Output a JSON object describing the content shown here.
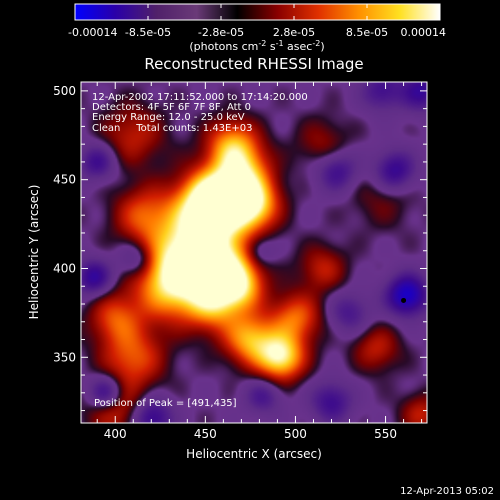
{
  "chart_data": {
    "type": "heatmap",
    "title": "Reconstructed RHESSI Image",
    "xlabel": "Heliocentric X (arcsec)",
    "ylabel": "Heliocentric Y (arcsec)",
    "xlim": [
      381,
      573
    ],
    "ylim": [
      313,
      505
    ],
    "x_ticks": [
      "400",
      "450",
      "500",
      "550"
    ],
    "y_ticks": [
      "350",
      "400",
      "450",
      "500"
    ],
    "colorbar": {
      "ticks": [
        "-0.00014",
        "-8.5e-05",
        "-2.8e-05",
        "2.8e-05",
        "8.5e-05",
        "0.00014"
      ],
      "unit_label_parts": {
        "pre": "(photons cm",
        "e1": "-2",
        "mid": " s",
        "e2": "-1",
        "post": " asec",
        "e3": "-2",
        "end": ")"
      },
      "range": [
        -0.00014,
        0.00014
      ],
      "colors": [
        "#0000ff",
        "#2a00a8",
        "#50206a",
        "#6a3a78",
        "#000000",
        "#8a0000",
        "#e03000",
        "#ff9000",
        "#ffe020",
        "#ffffff"
      ]
    },
    "annotations": [
      "12-Apr-2002 17:11:52.000 to 17:14:20.000",
      "Detectors: 4F 5F 6F 7F 8F, Att 0",
      "Energy Range: 12.0 - 25.0 keV",
      "Clean     Total counts: 1.43E+03"
    ],
    "peak_label": "Position of Peak = [491,435]",
    "peak": [
      491,
      435
    ],
    "marker": [
      560,
      382
    ],
    "sources": [
      {
        "x": 455,
        "y": 438,
        "v": 1.0,
        "s": 11
      },
      {
        "x": 476,
        "y": 436,
        "v": 0.85,
        "s": 10
      },
      {
        "x": 450,
        "y": 428,
        "v": 0.7,
        "s": 16
      },
      {
        "x": 470,
        "y": 454,
        "v": 0.7,
        "s": 11
      },
      {
        "x": 465,
        "y": 470,
        "v": 0.6,
        "s": 10
      },
      {
        "x": 440,
        "y": 405,
        "v": 0.75,
        "s": 15
      },
      {
        "x": 460,
        "y": 400,
        "v": 0.72,
        "s": 12
      },
      {
        "x": 430,
        "y": 390,
        "v": 0.65,
        "s": 14
      },
      {
        "x": 455,
        "y": 380,
        "v": 0.6,
        "s": 11
      },
      {
        "x": 470,
        "y": 390,
        "v": 0.55,
        "s": 9
      },
      {
        "x": 475,
        "y": 360,
        "v": 0.7,
        "s": 10
      },
      {
        "x": 492,
        "y": 350,
        "v": 0.9,
        "s": 9
      },
      {
        "x": 500,
        "y": 372,
        "v": 0.55,
        "s": 10
      },
      {
        "x": 410,
        "y": 350,
        "v": 0.5,
        "s": 12
      },
      {
        "x": 400,
        "y": 372,
        "v": 0.45,
        "s": 10
      },
      {
        "x": 415,
        "y": 430,
        "v": 0.45,
        "s": 11
      },
      {
        "x": 410,
        "y": 475,
        "v": 0.35,
        "s": 12
      },
      {
        "x": 400,
        "y": 322,
        "v": 0.45,
        "s": 11
      },
      {
        "x": 515,
        "y": 400,
        "v": 0.35,
        "s": 9
      },
      {
        "x": 545,
        "y": 355,
        "v": 0.35,
        "s": 9
      },
      {
        "x": 570,
        "y": 318,
        "v": 0.35,
        "s": 8
      },
      {
        "x": 515,
        "y": 470,
        "v": 0.25,
        "s": 10
      },
      {
        "x": 548,
        "y": 440,
        "v": 0.18,
        "s": 12
      },
      {
        "x": 395,
        "y": 330,
        "v": -0.65,
        "s": 7
      },
      {
        "x": 420,
        "y": 316,
        "v": -0.55,
        "s": 8
      },
      {
        "x": 388,
        "y": 395,
        "v": -0.55,
        "s": 7
      },
      {
        "x": 412,
        "y": 405,
        "v": -0.4,
        "s": 7
      },
      {
        "x": 523,
        "y": 455,
        "v": -0.45,
        "s": 8
      },
      {
        "x": 555,
        "y": 455,
        "v": -0.55,
        "s": 8
      },
      {
        "x": 562,
        "y": 385,
        "v": -0.8,
        "s": 8
      },
      {
        "x": 520,
        "y": 325,
        "v": -0.45,
        "s": 8
      },
      {
        "x": 482,
        "y": 328,
        "v": -0.35,
        "s": 7
      },
      {
        "x": 570,
        "y": 500,
        "v": -0.5,
        "s": 8
      },
      {
        "x": 548,
        "y": 500,
        "v": -0.4,
        "s": 8
      },
      {
        "x": 390,
        "y": 460,
        "v": -0.45,
        "s": 7
      },
      {
        "x": 530,
        "y": 375,
        "v": -0.35,
        "s": 8
      },
      {
        "x": 480,
        "y": 410,
        "v": -0.3,
        "s": 6
      }
    ]
  },
  "footer": {
    "timestamp": "12-Apr-2013 05:02"
  }
}
